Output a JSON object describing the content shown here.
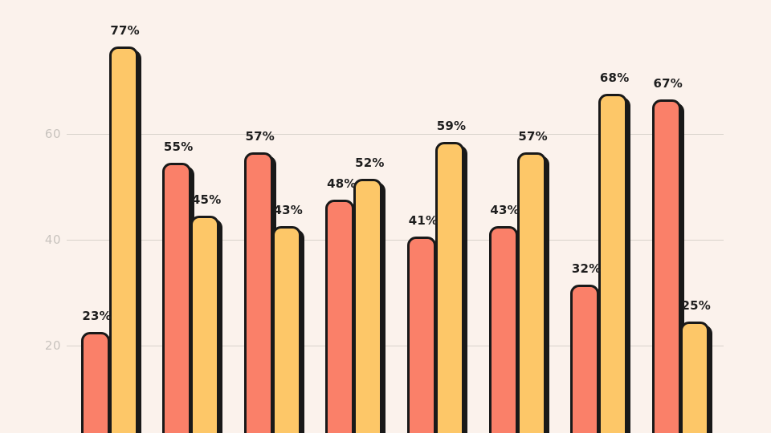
{
  "page": {
    "background_color": "#fbf2ec"
  },
  "chart_data": {
    "type": "bar",
    "grouped": true,
    "groups": 8,
    "series": [
      {
        "name": "coral-series",
        "color": "#fa8069",
        "values": [
          23,
          55,
          57,
          48,
          41,
          43,
          32,
          67
        ],
        "labels": [
          "23%",
          "55%",
          "57%",
          "48%",
          "41%",
          "43%",
          "32%",
          "67%"
        ]
      },
      {
        "name": "amber-series",
        "color": "#fdc768",
        "values": [
          77,
          45,
          43,
          52,
          59,
          57,
          68,
          25
        ],
        "labels": [
          "77%",
          "45%",
          "43%",
          "52%",
          "59%",
          "57%",
          "68%",
          "25%"
        ]
      }
    ],
    "yticks": [
      20,
      40,
      60
    ],
    "ytick_labels": [
      "20",
      "40",
      "60"
    ],
    "ylim": [
      0,
      80
    ],
    "data_label_suffix": "%",
    "grid": true,
    "legend": "none",
    "x_axis_labels_visible": false,
    "baseline_cropped_below_view": true,
    "styles": {
      "bar_outline_color": "#191919",
      "bar_shadow_color": "#191919",
      "gridline_color": "#d8d2cb",
      "tick_label_color": "#c8c3be",
      "data_label_color": "#1e1e1e"
    }
  }
}
